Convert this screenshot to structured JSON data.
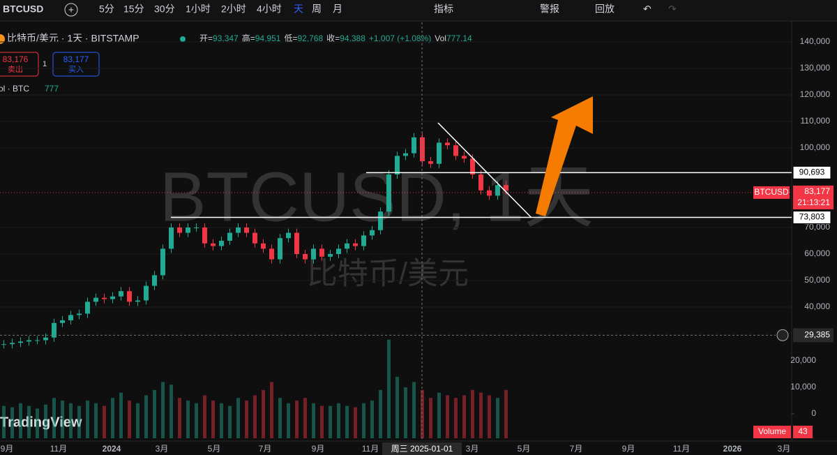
{
  "toolbar": {
    "symbol": "BTCUSD",
    "intervals": [
      "5分",
      "15分",
      "30分",
      "1小时",
      "2小时",
      "4小时",
      "天",
      "周",
      "月"
    ],
    "indicators": "指标",
    "alert": "警报",
    "replay": "回放"
  },
  "header": {
    "title": "比特币/美元 · 1天 · BITSTAMP",
    "open_label": "开=",
    "open": "93,347",
    "high_label": "高=",
    "high": "94,951",
    "low_label": "低=",
    "low": "92,768",
    "close_label": "收=",
    "close": "94,388",
    "change": "+1,007 (+1.08%)",
    "vol_label": "Vol",
    "vol": "777.14"
  },
  "trade": {
    "sell_price": "83,176",
    "sell": "卖出",
    "spread": "1",
    "buy_price": "83,177",
    "buy": "买入"
  },
  "volume_legend": {
    "label": "ol · BTC",
    "value": "777"
  },
  "watermark": {
    "symbol": "BTCUSD, 1天",
    "name": "比特币/美元"
  },
  "brand": "TradingView",
  "chart": {
    "price_ticks": [
      {
        "value": 140000,
        "label": "140,000"
      },
      {
        "value": 130000,
        "label": "130,000"
      },
      {
        "value": 120000,
        "label": "120,000"
      },
      {
        "value": 110000,
        "label": "110,000"
      },
      {
        "value": 100000,
        "label": "100,000"
      },
      {
        "value": 70000,
        "label": "70,000"
      },
      {
        "value": 60000,
        "label": "60,000"
      },
      {
        "value": 50000,
        "label": "50,000"
      },
      {
        "value": 40000,
        "label": "40,000"
      }
    ],
    "volume_ticks": [
      {
        "value": 20000,
        "label": "20,000"
      },
      {
        "value": 10000,
        "label": "10,000"
      },
      0
    ],
    "levels": [
      {
        "value": 90693,
        "label": "90,693"
      },
      {
        "value": 73803,
        "label": "73,803"
      }
    ],
    "crosshair": {
      "value": 29385,
      "label": "29,385",
      "date": "周三 2025-01-01"
    },
    "last": {
      "symbol": "BTCUSD",
      "value": 83177,
      "label": "83,177",
      "countdown": "21:13:21"
    },
    "volume_last": {
      "label": "Volume",
      "value": "43"
    },
    "x_labels": [
      "9月",
      "11月",
      "2024",
      "3月",
      "5月",
      "7月",
      "9月",
      "11月",
      "3月",
      "5月",
      "7月",
      "9月",
      "11月",
      "2026",
      "3月"
    ],
    "closes": [
      26000,
      26500,
      27000,
      27500,
      27500,
      28500,
      34000,
      35000,
      37000,
      37500,
      42000,
      43500,
      43000,
      44000,
      46000,
      42000,
      42500,
      48000,
      52000,
      62000,
      70000,
      68000,
      70000,
      70000,
      64000,
      63000,
      65000,
      68000,
      70000,
      68000,
      64000,
      62000,
      58000,
      66000,
      68000,
      60000,
      58000,
      62000,
      59000,
      60000,
      62000,
      64000,
      63000,
      67000,
      69000,
      76000,
      90000,
      97000,
      98000,
      104000,
      95000,
      94000,
      102000,
      101000,
      97000,
      96000,
      90000,
      84000,
      82000,
      86000,
      84000
    ],
    "volumes": [
      3000,
      2500,
      4000,
      3000,
      2000,
      3500,
      6000,
      5000,
      4000,
      3000,
      5000,
      4000,
      3000,
      6000,
      8000,
      5000,
      4000,
      7000,
      9000,
      12000,
      11000,
      6000,
      5000,
      4000,
      7000,
      5000,
      4000,
      3000,
      6000,
      5000,
      7000,
      9000,
      12000,
      6000,
      4000,
      5000,
      6000,
      4000,
      3000,
      3000,
      4000,
      3000,
      2500,
      4000,
      5000,
      9000,
      28000,
      14000,
      10000,
      12000,
      9000,
      6000,
      8000,
      7000,
      6000,
      7000,
      9000,
      8000,
      7000,
      6000,
      9000
    ]
  }
}
